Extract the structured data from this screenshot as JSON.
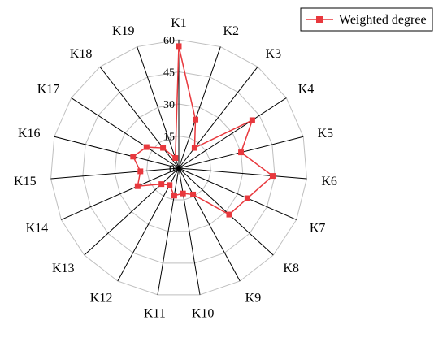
{
  "chart_data": {
    "type": "radar",
    "categories": [
      "K1",
      "K2",
      "K3",
      "K4",
      "K5",
      "K6",
      "K7",
      "K8",
      "K9",
      "K10",
      "K11",
      "K12",
      "K13",
      "K14",
      "K15",
      "K16",
      "K17",
      "K18",
      "K19"
    ],
    "series": [
      {
        "name": "Weighted degree",
        "color": "#e8383d",
        "values": [
          57,
          24,
          12,
          41,
          30,
          44,
          35,
          32,
          14,
          12,
          13,
          9,
          11,
          21,
          18,
          22,
          18,
          12,
          5
        ]
      }
    ],
    "axis": {
      "ticks": [
        0,
        15,
        30,
        45,
        60
      ],
      "range": [
        0,
        60
      ]
    },
    "legend_position": "top-right",
    "grid_lines": "on"
  }
}
